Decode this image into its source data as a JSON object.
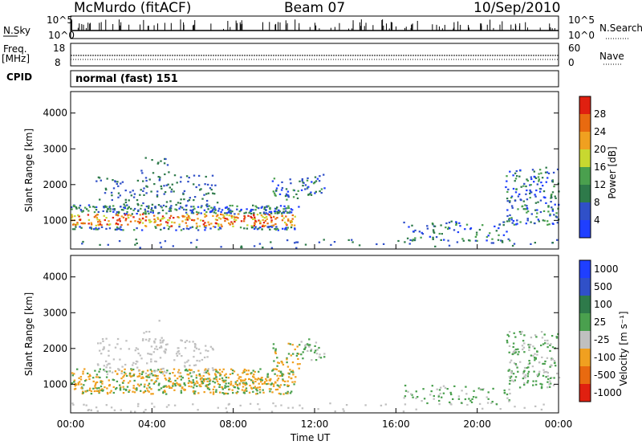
{
  "header": {
    "station": "McMurdo (fitACF)",
    "beam": "Beam 07",
    "date": "10/Sep/2010"
  },
  "top_panel": {
    "left_label": "N.Sky",
    "right_label": "N.Search",
    "left_ticks": [
      "10^5",
      "10^0"
    ],
    "right_ticks": [
      "10^5",
      "10^0"
    ]
  },
  "freq_panel": {
    "left_label_line1": "Freq.",
    "left_label_line2": "[MHz]",
    "right_label": "Nave",
    "left_ticks": [
      "18",
      "8"
    ],
    "right_ticks": [
      "60",
      "0"
    ]
  },
  "cpid": {
    "label": "CPID",
    "value": "normal (fast) 151"
  },
  "chart_data": [
    {
      "type": "heatmap",
      "ylabel": "Slant Range [km]",
      "yticks": [
        "1000",
        "2000",
        "3000",
        "4000"
      ],
      "ylim": [
        200,
        4600
      ],
      "xlim": [
        "00:00",
        "24:00"
      ],
      "colorbar_label": "Power [dB]",
      "colorbar_ticks": [
        "4",
        "8",
        "12",
        "16",
        "20",
        "24",
        "28"
      ],
      "colorbar_colors": [
        "#1f3fff",
        "#3050c8",
        "#2e7a4a",
        "#4aa04e",
        "#c8d830",
        "#f0a020",
        "#e86a10",
        "#e02010"
      ]
    },
    {
      "type": "heatmap",
      "ylabel": "Slant Range [km]",
      "yticks": [
        "1000",
        "2000",
        "3000",
        "4000"
      ],
      "ylim": [
        200,
        4600
      ],
      "xlim": [
        "00:00",
        "24:00"
      ],
      "xticks": [
        "00:00",
        "04:00",
        "08:00",
        "12:00",
        "16:00",
        "20:00",
        "00:00"
      ],
      "xlabel": "Time UT",
      "colorbar_label": "Velocity [m s⁻¹]",
      "colorbar_ticks": [
        "1000",
        "500",
        "100",
        "25",
        "-25",
        "-100",
        "-500",
        "-1000"
      ],
      "colorbar_colors": [
        "#1f3fff",
        "#3050c8",
        "#2e7a4a",
        "#4aa04e",
        "#c0c0c0",
        "#f0a020",
        "#e86a10",
        "#e02010"
      ]
    }
  ]
}
